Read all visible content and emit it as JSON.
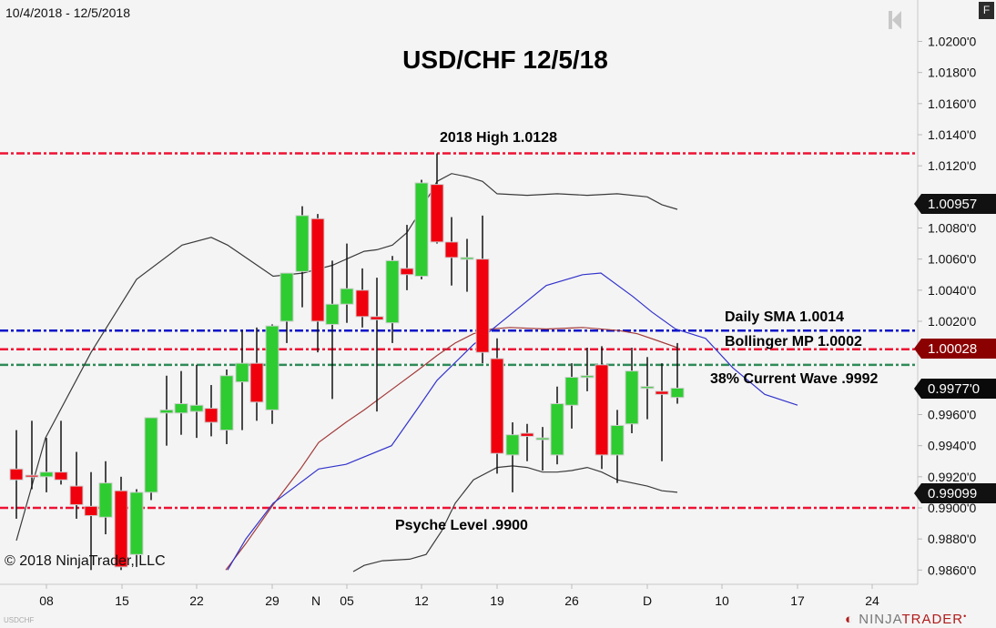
{
  "header": {
    "date_range": "10/4/2018 - 12/5/2018",
    "f_button": "F",
    "title": "USD/CHF 12/5/18"
  },
  "footer": {
    "copyright": "© 2018 NinjaTrader, LLC",
    "symbol": "USDCHF",
    "brand_ninja": "NINJA",
    "brand_trader": "TRADER"
  },
  "annotations": {
    "high": "2018 High 1.0128",
    "sma": "Daily SMA  1.0014",
    "bollinger": "Bollinger MP 1.0002",
    "wave": "38% Current Wave .9992",
    "psyche": "Psyche Level .9900"
  },
  "price_tags": {
    "upper_band": "1.00957",
    "mid_band": "1.00028",
    "last": "0.9977'0",
    "lower_band": "0.99099"
  },
  "colors": {
    "bull": "#2ecc31",
    "bear": "#f0000c",
    "sma_line": "#0a14c8",
    "level_red": "#ee1133",
    "wave_green": "#2e8b57",
    "bb_band": "#3a3a3a",
    "bb_mid": "#a33a3a",
    "sma_curve": "#3333cc"
  },
  "chart_data": {
    "type": "candlestick",
    "title": "USD/CHF 12/5/18",
    "subtitle": "10/4/2018 - 12/5/2018",
    "y_ticks": [
      "1.0200'0",
      "1.0180'0",
      "1.0160'0",
      "1.0140'0",
      "1.0120'0",
      "1.0080'0",
      "1.0060'0",
      "1.0040'0",
      "1.0020'0",
      "0.9960'0",
      "0.9940'0",
      "0.9920'0",
      "0.9900'0",
      "0.9880'0",
      "0.9860'0"
    ],
    "x_ticks": [
      "08",
      "15",
      "22",
      "29",
      "N",
      "05",
      "12",
      "19",
      "26",
      "D",
      "10",
      "17",
      "24"
    ],
    "ylim": [
      0.9855,
      1.0205
    ],
    "horizontal_levels": [
      {
        "label": "2018 High 1.0128",
        "value": 1.0128,
        "color": "red"
      },
      {
        "label": "Daily SMA 1.0014",
        "value": 1.0014,
        "color": "blue"
      },
      {
        "label": "Bollinger MP 1.0002",
        "value": 1.0002,
        "color": "red"
      },
      {
        "label": "38% Current Wave .9992",
        "value": 0.9992,
        "color": "green"
      },
      {
        "label": "Psyche Level .9900",
        "value": 0.99,
        "color": "red"
      }
    ],
    "candles": [
      {
        "x": 18,
        "o": 0.9925,
        "h": 0.995,
        "l": 0.9893,
        "c": 0.9918
      },
      {
        "x": 35,
        "o": 0.9921,
        "h": 0.9956,
        "l": 0.9912,
        "c": 0.992
      },
      {
        "x": 51,
        "o": 0.992,
        "h": 0.9945,
        "l": 0.991,
        "c": 0.9923
      },
      {
        "x": 67,
        "o": 0.9923,
        "h": 0.9956,
        "l": 0.9915,
        "c": 0.9918
      },
      {
        "x": 84,
        "o": 0.9914,
        "h": 0.9936,
        "l": 0.9893,
        "c": 0.9902
      },
      {
        "x": 100,
        "o": 0.9901,
        "h": 0.9923,
        "l": 0.986,
        "c": 0.9895
      },
      {
        "x": 116,
        "o": 0.9894,
        "h": 0.993,
        "l": 0.9883,
        "c": 0.9916
      },
      {
        "x": 133,
        "o": 0.9911,
        "h": 0.992,
        "l": 0.986,
        "c": 0.9862
      },
      {
        "x": 150,
        "o": 0.987,
        "h": 0.9912,
        "l": 0.9862,
        "c": 0.991
      },
      {
        "x": 166,
        "o": 0.991,
        "h": 0.9946,
        "l": 0.9905,
        "c": 0.9958
      },
      {
        "x": 183,
        "o": 0.9961,
        "h": 0.9985,
        "l": 0.994,
        "c": 0.9963
      },
      {
        "x": 199,
        "o": 0.9961,
        "h": 0.9988,
        "l": 0.9947,
        "c": 0.9967
      },
      {
        "x": 216,
        "o": 0.9962,
        "h": 0.9992,
        "l": 0.9945,
        "c": 0.9966
      },
      {
        "x": 232,
        "o": 0.9964,
        "h": 0.9979,
        "l": 0.9946,
        "c": 0.9955
      },
      {
        "x": 249,
        "o": 0.995,
        "h": 0.9989,
        "l": 0.9941,
        "c": 0.9985
      },
      {
        "x": 266,
        "o": 0.9981,
        "h": 1.0014,
        "l": 0.995,
        "c": 0.9993
      },
      {
        "x": 282,
        "o": 0.9993,
        "h": 1.0016,
        "l": 0.9956,
        "c": 0.9968
      },
      {
        "x": 299,
        "o": 0.9963,
        "h": 1.0018,
        "l": 0.9954,
        "c": 1.0017
      },
      {
        "x": 315,
        "o": 1.002,
        "h": 1.0049,
        "l": 1.0006,
        "c": 1.0051
      },
      {
        "x": 332,
        "o": 1.0052,
        "h": 1.0094,
        "l": 1.0029,
        "c": 1.0088
      },
      {
        "x": 349,
        "o": 1.0086,
        "h": 1.0089,
        "l": 1.0,
        "c": 1.002
      },
      {
        "x": 365,
        "o": 1.0018,
        "h": 1.0059,
        "l": 0.997,
        "c": 1.0031
      },
      {
        "x": 381,
        "o": 1.0031,
        "h": 1.007,
        "l": 1.0019,
        "c": 1.0041
      },
      {
        "x": 398,
        "o": 1.004,
        "h": 1.0054,
        "l": 1.0016,
        "c": 1.0023
      },
      {
        "x": 414,
        "o": 1.0023,
        "h": 1.0048,
        "l": 0.9962,
        "c": 1.0021
      },
      {
        "x": 431,
        "o": 1.0019,
        "h": 1.0062,
        "l": 1.0006,
        "c": 1.0059
      },
      {
        "x": 447,
        "o": 1.0054,
        "h": 1.0082,
        "l": 1.004,
        "c": 1.005
      },
      {
        "x": 463,
        "o": 1.0049,
        "h": 1.0111,
        "l": 1.0047,
        "c": 1.0109
      },
      {
        "x": 480,
        "o": 1.0108,
        "h": 1.0128,
        "l": 1.007,
        "c": 1.0071
      },
      {
        "x": 496,
        "o": 1.0071,
        "h": 1.0087,
        "l": 1.0043,
        "c": 1.0061
      },
      {
        "x": 513,
        "o": 1.0061,
        "h": 1.0073,
        "l": 1.0039,
        "c": 1.0061
      },
      {
        "x": 530,
        "o": 1.006,
        "h": 1.0088,
        "l": 0.9993,
        "c": 1.0
      },
      {
        "x": 546,
        "o": 0.9996,
        "h": 1.0009,
        "l": 0.9922,
        "c": 0.9935
      },
      {
        "x": 563,
        "o": 0.9934,
        "h": 0.9955,
        "l": 0.991,
        "c": 0.9947
      },
      {
        "x": 579,
        "o": 0.9948,
        "h": 0.9954,
        "l": 0.993,
        "c": 0.9946
      },
      {
        "x": 596,
        "o": 0.9945,
        "h": 0.9952,
        "l": 0.9924,
        "c": 0.9945
      },
      {
        "x": 612,
        "o": 0.9934,
        "h": 0.9978,
        "l": 0.9928,
        "c": 0.9967
      },
      {
        "x": 628,
        "o": 0.9966,
        "h": 0.9993,
        "l": 0.9951,
        "c": 0.9984
      },
      {
        "x": 645,
        "o": 0.9985,
        "h": 1.0003,
        "l": 0.9975,
        "c": 0.9985
      },
      {
        "x": 661,
        "o": 0.9992,
        "h": 1.0004,
        "l": 0.9925,
        "c": 0.9934
      },
      {
        "x": 678,
        "o": 0.9934,
        "h": 0.9963,
        "l": 0.9916,
        "c": 0.9953
      },
      {
        "x": 694,
        "o": 0.9954,
        "h": 1.0003,
        "l": 0.9948,
        "c": 0.9988
      },
      {
        "x": 711,
        "o": 0.9978,
        "h": 0.9997,
        "l": 0.9957,
        "c": 0.9978
      },
      {
        "x": 727,
        "o": 0.9975,
        "h": 0.9993,
        "l": 0.993,
        "c": 0.9973
      },
      {
        "x": 744,
        "o": 0.9971,
        "h": 1.0006,
        "l": 0.9967,
        "c": 0.9977
      }
    ],
    "series": [
      {
        "name": "Bollinger Upper",
        "points": [
          [
            18,
            0.9879
          ],
          [
            50,
            0.9945
          ],
          [
            100,
            1.0
          ],
          [
            150,
            1.0047
          ],
          [
            200,
            1.0069
          ],
          [
            232,
            1.0074
          ],
          [
            250,
            1.0069
          ],
          [
            300,
            1.0049
          ],
          [
            333,
            1.0051
          ],
          [
            365,
            1.0056
          ],
          [
            400,
            1.0065
          ],
          [
            414,
            1.0066
          ],
          [
            431,
            1.0069
          ],
          [
            447,
            1.0077
          ],
          [
            463,
            1.0092
          ],
          [
            480,
            1.011
          ],
          [
            496,
            1.0115
          ],
          [
            513,
            1.0113
          ],
          [
            530,
            1.011
          ],
          [
            546,
            1.0102
          ],
          [
            579,
            1.0101
          ],
          [
            612,
            1.0102
          ],
          [
            645,
            1.0101
          ],
          [
            678,
            1.0102
          ],
          [
            711,
            1.01
          ],
          [
            727,
            1.0095
          ],
          [
            744,
            1.0092
          ]
        ]
      },
      {
        "name": "Bollinger Middle",
        "points": [
          [
            248,
            0.986
          ],
          [
            270,
            0.9877
          ],
          [
            300,
            0.9902
          ],
          [
            330,
            0.9925
          ],
          [
            350,
            0.9942
          ],
          [
            380,
            0.9955
          ],
          [
            400,
            0.9963
          ],
          [
            430,
            0.9976
          ],
          [
            460,
            0.9989
          ],
          [
            480,
            0.9998
          ],
          [
            500,
            1.0006
          ],
          [
            520,
            1.0012
          ],
          [
            540,
            1.0015
          ],
          [
            560,
            1.0016
          ],
          [
            600,
            1.0015
          ],
          [
            640,
            1.0016
          ],
          [
            680,
            1.0014
          ],
          [
            700,
            1.0012
          ],
          [
            720,
            1.0008
          ],
          [
            744,
            1.0003
          ]
        ]
      },
      {
        "name": "Daily SMA",
        "points": [
          [
            250,
            0.986
          ],
          [
            270,
            0.988
          ],
          [
            300,
            0.9903
          ],
          [
            350,
            0.9925
          ],
          [
            380,
            0.9928
          ],
          [
            430,
            0.994
          ],
          [
            460,
            0.9965
          ],
          [
            480,
            0.9982
          ],
          [
            520,
            1.0005
          ],
          [
            560,
            1.0024
          ],
          [
            600,
            1.0043
          ],
          [
            640,
            1.005
          ],
          [
            660,
            1.0051
          ],
          [
            695,
            1.0036
          ],
          [
            716,
            1.0026
          ],
          [
            742,
            1.0015
          ],
          [
            775,
            1.0009
          ],
          [
            805,
            0.999
          ],
          [
            840,
            0.9973
          ],
          [
            876,
            0.9966
          ]
        ]
      },
      {
        "name": "Bollinger Lower",
        "points": [
          [
            388,
            0.9859
          ],
          [
            400,
            0.9863
          ],
          [
            420,
            0.9866
          ],
          [
            450,
            0.9867
          ],
          [
            468,
            0.987
          ],
          [
            485,
            0.9885
          ],
          [
            500,
            0.9903
          ],
          [
            520,
            0.9918
          ],
          [
            546,
            0.9926
          ],
          [
            563,
            0.9927
          ],
          [
            579,
            0.9926
          ],
          [
            596,
            0.9923
          ],
          [
            612,
            0.9923
          ],
          [
            628,
            0.9924
          ],
          [
            645,
            0.9926
          ],
          [
            661,
            0.9923
          ],
          [
            678,
            0.9918
          ],
          [
            711,
            0.9914
          ],
          [
            727,
            0.9911
          ],
          [
            744,
            0.991
          ]
        ]
      }
    ]
  }
}
